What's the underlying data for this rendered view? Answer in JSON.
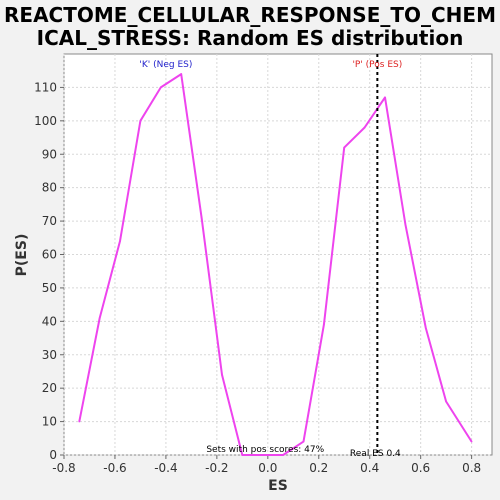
{
  "chart_data": {
    "type": "line",
    "title_line1": "REACTOME_CELLULAR_RESPONSE_TO_CHEM",
    "title_line2": "ICAL_STRESS: Random ES distribution",
    "xlabel": "ES",
    "ylabel": "P(ES)",
    "xlim": [
      -0.8,
      0.88
    ],
    "ylim": [
      0,
      120
    ],
    "grid": true,
    "xticks": [
      -0.8,
      -0.6,
      -0.4,
      -0.2,
      0.0,
      0.2,
      0.4,
      0.6,
      0.8
    ],
    "xtick_labels": [
      "-0.8",
      "-0.6",
      "-0.4",
      "-0.2",
      "0.0",
      "0.2",
      "0.4",
      "0.6",
      "0.8"
    ],
    "yticks": [
      0,
      10,
      20,
      30,
      40,
      50,
      60,
      70,
      80,
      90,
      100,
      110
    ],
    "ytick_labels": [
      "0",
      "10",
      "20",
      "30",
      "40",
      "50",
      "60",
      "70",
      "80",
      "90",
      "100",
      "110"
    ],
    "series": [
      {
        "color": "#ee44ee",
        "x": [
          -0.74,
          -0.66,
          -0.58,
          -0.5,
          -0.42,
          -0.34,
          -0.26,
          -0.18,
          -0.1,
          -0.02,
          0.06,
          0.14,
          0.22,
          0.3,
          0.38,
          0.46,
          0.54,
          0.62,
          0.7,
          0.8
        ],
        "y": [
          10,
          41,
          64,
          100,
          110,
          114,
          71,
          24,
          0,
          0,
          0,
          4,
          39,
          92,
          98,
          107,
          69,
          38,
          16,
          4
        ]
      }
    ],
    "real_es": 0.43,
    "annotations": {
      "neg_label": "'K' (Neg ES)",
      "pos_label": "'P' (Pos ES)",
      "sets_text": "Sets with pos scores: 47%",
      "real_es_text": "Real ES 0.4"
    },
    "colors": {
      "neg_label": "#2222cc",
      "pos_label": "#dd2222",
      "curve": "#ee44ee",
      "grid": "#d8d8d8",
      "plot_bg": "#ffffff",
      "page_bg": "#f2f2f2"
    }
  }
}
